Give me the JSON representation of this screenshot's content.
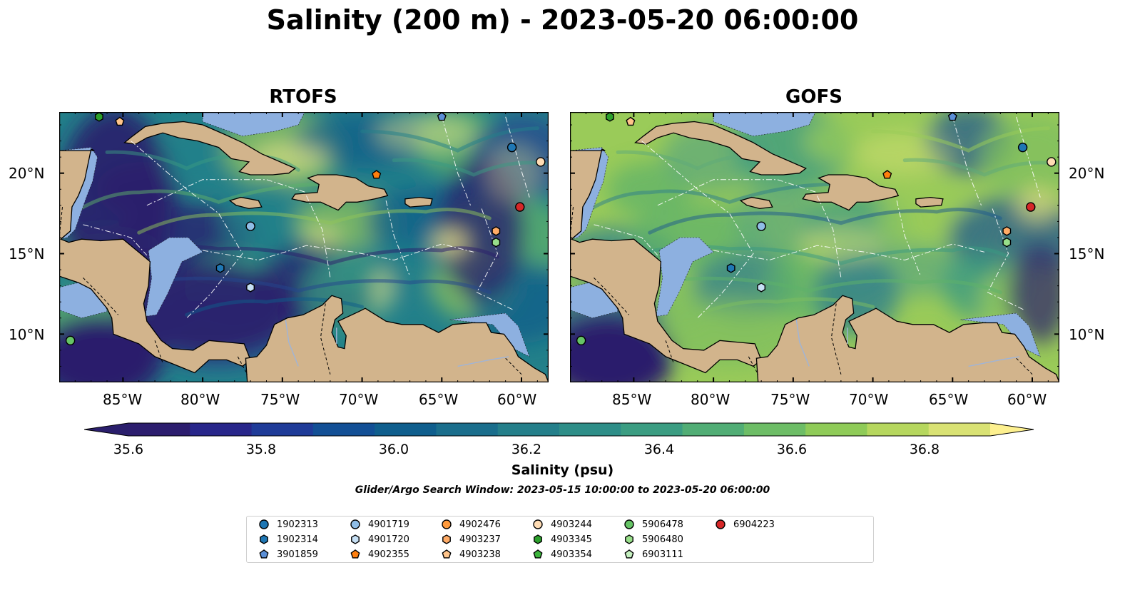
{
  "title": "Salinity (200 m) - 2023-05-20 06:00:00",
  "panels": [
    {
      "title": "RTOFS",
      "colors": {
        "ocean": [
          "#2a1e6c",
          "#25468e",
          "#0f5d8a",
          "#23808a",
          "#3a9a82",
          "#5fb26a",
          "#8fc35b"
        ],
        "highlights": "#f6ea8c"
      }
    },
    {
      "title": "GOFS",
      "colors": {
        "ocean": [
          "#3a9a82",
          "#5fb26a",
          "#7fbe60",
          "#9acb59",
          "#5fa97a",
          "#2f7e8c",
          "#1f5a8e"
        ],
        "highlights": "#e9e47a"
      }
    }
  ],
  "map_axes": {
    "lon_ticks": [
      "85°W",
      "80°W",
      "75°W",
      "70°W",
      "65°W",
      "60°W"
    ],
    "lat_ticks": [
      "20°N",
      "15°N",
      "10°N"
    ]
  },
  "colors": {
    "land": "#d2b48c",
    "shelf": "#8db0e0",
    "deep_low": "#2a1e6c"
  },
  "colorbar": {
    "label": "Salinity (psu)",
    "ticks": [
      "35.6",
      "35.8",
      "36.0",
      "36.2",
      "36.4",
      "36.6",
      "36.8"
    ],
    "tick_values": [
      35.6,
      35.8,
      36.0,
      36.2,
      36.4,
      36.6,
      36.8
    ],
    "range": [
      35.5,
      36.9
    ],
    "levels": [
      35.5,
      35.6,
      35.7,
      35.8,
      35.9,
      36.0,
      36.1,
      36.2,
      36.3,
      36.4,
      36.5,
      36.6,
      36.7,
      36.8,
      36.9
    ],
    "colors": [
      "#2c1d6e",
      "#28268a",
      "#1f3b98",
      "#124f95",
      "#0f5e8d",
      "#1a6e8c",
      "#247f8a",
      "#2e8e88",
      "#3b9d82",
      "#51ad75",
      "#6dbd66",
      "#8fcb58",
      "#b6d75e",
      "#d9e274"
    ],
    "extend_low": "#2a1e6c",
    "extend_high": "#fdf08f"
  },
  "search_window": "Glider/Argo Search Window: 2023-05-15 10:00:00 to 2023-05-20 06:00:00",
  "legend": [
    {
      "id": "1902313",
      "marker": "circle",
      "color": "#1f77b4"
    },
    {
      "id": "1902314",
      "marker": "hexagon",
      "color": "#1f77b4"
    },
    {
      "id": "3901859",
      "marker": "pentagon",
      "color": "#5b8fd6"
    },
    {
      "id": "4901719",
      "marker": "circle",
      "color": "#8fbde6"
    },
    {
      "id": "4901720",
      "marker": "hexagon",
      "color": "#c6e0f5"
    },
    {
      "id": "4902355",
      "marker": "pentagon",
      "color": "#ff7f0e"
    },
    {
      "id": "4902476",
      "marker": "circle",
      "color": "#ff9a3c"
    },
    {
      "id": "4903237",
      "marker": "hexagon",
      "color": "#ffab66"
    },
    {
      "id": "4903238",
      "marker": "pentagon",
      "color": "#ffc48a"
    },
    {
      "id": "4903244",
      "marker": "circle",
      "color": "#ffdcb4"
    },
    {
      "id": "4903345",
      "marker": "hexagon",
      "color": "#2ca02c"
    },
    {
      "id": "4903354",
      "marker": "pentagon",
      "color": "#3cb43c"
    },
    {
      "id": "5906478",
      "marker": "circle",
      "color": "#66c466"
    },
    {
      "id": "5906480",
      "marker": "hexagon",
      "color": "#98df8a"
    },
    {
      "id": "6903111",
      "marker": "pentagon",
      "color": "#c5f0c0"
    },
    {
      "id": "6904223",
      "marker": "circle",
      "color": "#d62728"
    }
  ],
  "floats": [
    {
      "id": "4903345",
      "lon": -86.5,
      "lat": 23.5
    },
    {
      "id": "4903238",
      "lon": -85.2,
      "lat": 23.2
    },
    {
      "id": "3901859",
      "lon": -65.0,
      "lat": 23.5
    },
    {
      "id": "1902313",
      "lon": -60.6,
      "lat": 21.6
    },
    {
      "id": "4903244",
      "lon": -58.8,
      "lat": 20.7
    },
    {
      "id": "4902355",
      "lon": -69.1,
      "lat": 19.9
    },
    {
      "id": "6904223",
      "lon": -60.1,
      "lat": 17.9
    },
    {
      "id": "4901719",
      "lon": -77.0,
      "lat": 16.7
    },
    {
      "id": "4903237",
      "lon": -61.6,
      "lat": 16.4
    },
    {
      "id": "5906480",
      "lon": -61.6,
      "lat": 15.7
    },
    {
      "id": "1902314",
      "lon": -78.9,
      "lat": 14.1
    },
    {
      "id": "4901720",
      "lon": -77.0,
      "lat": 12.9
    },
    {
      "id": "5906478",
      "lon": -88.3,
      "lat": 9.6
    }
  ]
}
